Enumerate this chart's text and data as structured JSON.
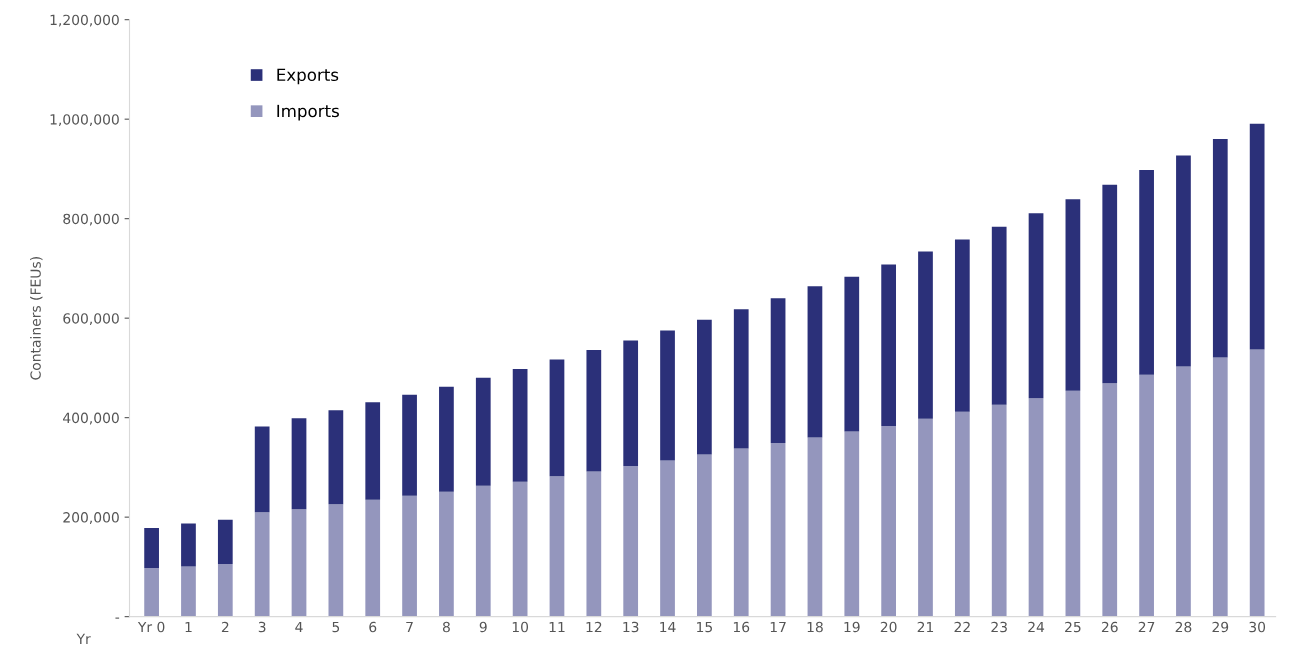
{
  "chart_data": {
    "type": "bar",
    "stacked": true,
    "xlabel": "Yr",
    "ylabel": "Containers (FEUs)",
    "categories": [
      "Yr 0",
      "1",
      "2",
      "3",
      "4",
      "5",
      "6",
      "7",
      "8",
      "9",
      "10",
      "11",
      "12",
      "13",
      "14",
      "15",
      "16",
      "17",
      "18",
      "19",
      "20",
      "21",
      "22",
      "23",
      "24",
      "25",
      "26",
      "27",
      "28",
      "29",
      "30"
    ],
    "series": [
      {
        "name": "Imports",
        "color": "#9496bd",
        "values": [
          98000,
          101000,
          106000,
          210000,
          216000,
          226000,
          235000,
          243000,
          251000,
          263000,
          271000,
          282000,
          292000,
          303000,
          314000,
          326000,
          338000,
          349000,
          360000,
          372000,
          383000,
          398000,
          412000,
          426000,
          439000,
          454000,
          469000,
          486000,
          503000,
          521000,
          537000
        ]
      },
      {
        "name": "Exports",
        "color": "#2b3079",
        "values": [
          80000,
          86000,
          89000,
          172000,
          183000,
          189000,
          196000,
          203000,
          211000,
          217000,
          227000,
          235000,
          244000,
          252000,
          261000,
          271000,
          280000,
          291000,
          304000,
          311000,
          325000,
          336000,
          346000,
          358000,
          372000,
          385000,
          399000,
          412000,
          424000,
          439000,
          454000
        ]
      }
    ],
    "ylim": [
      0,
      1200000
    ],
    "yticks": [
      {
        "value": 0,
        "label": "-"
      },
      {
        "value": 200000,
        "label": "200,000"
      },
      {
        "value": 400000,
        "label": "400,000"
      },
      {
        "value": 600000,
        "label": "600,000"
      },
      {
        "value": 800000,
        "label": "800,000"
      },
      {
        "value": 1000000,
        "label": "1,000,000"
      },
      {
        "value": 1200000,
        "label": "1,200,000"
      }
    ],
    "grid": false,
    "legend": "top left"
  }
}
